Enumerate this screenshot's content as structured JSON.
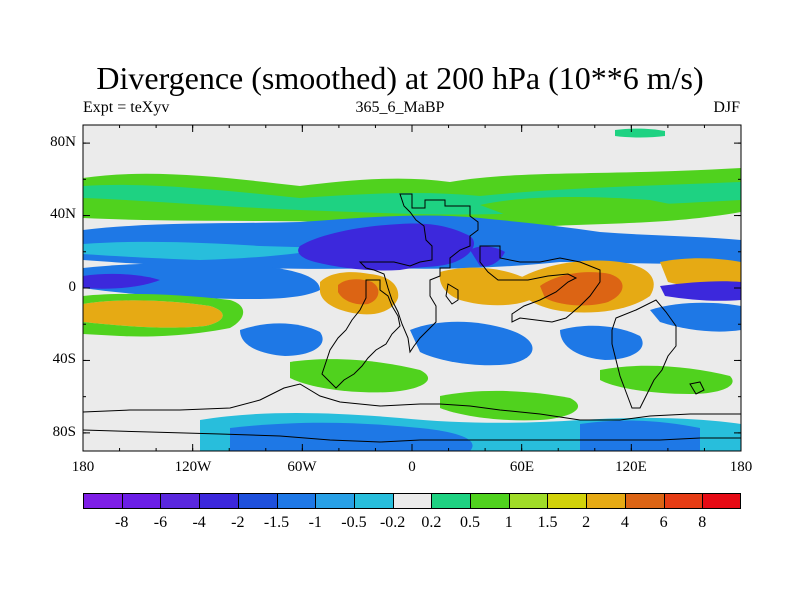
{
  "title": "Divergence (smoothed) at 200 hPa (10**6 m/s)",
  "subtitle_left": "Expt = teXyv",
  "subtitle_center": "365_6_MaBP",
  "subtitle_right": "DJF",
  "lat_labels": [
    "80N",
    "40N",
    "0",
    "40S",
    "80S"
  ],
  "lon_labels": [
    "180",
    "120W",
    "60W",
    "0",
    "60E",
    "120E",
    "180"
  ],
  "colorbar": {
    "colors": [
      "#7e1ee6",
      "#6b1ee6",
      "#5a28de",
      "#3c28dc",
      "#1e50dc",
      "#1e78e6",
      "#28a0e6",
      "#28bedc",
      "#ebebeb",
      "#1ed282",
      "#50d21e",
      "#a0dc28",
      "#d2d20a",
      "#e6aa14",
      "#dc6414",
      "#e63c14",
      "#e60a14"
    ],
    "labels": [
      "-8",
      "-6",
      "-4",
      "-2",
      "-1.5",
      "-1",
      "-0.5",
      "-0.2",
      "0.2",
      "0.5",
      "1",
      "1.5",
      "2",
      "4",
      "6",
      "8"
    ]
  },
  "map_colors": {
    "neutral": "#ebebeb",
    "strong_convergence": "#3c28dc",
    "convergence": "#1e78e6",
    "weak_convergence": "#28bedc",
    "weak_divergence": "#1ed282",
    "divergence": "#50d21e",
    "strong_divergence": "#e6aa14",
    "max_divergence": "#dc6414"
  }
}
